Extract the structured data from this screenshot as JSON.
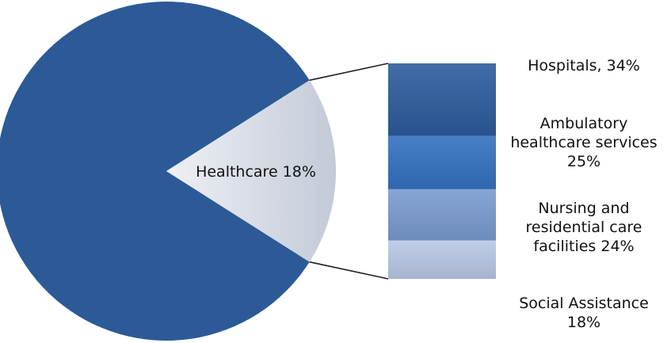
{
  "chart_data": {
    "type": "pie",
    "title": "",
    "pie": {
      "slices": [
        {
          "label": "",
          "value": 82,
          "color": "#2b5a97"
        },
        {
          "label": "Healthcare 18%",
          "value": 18,
          "color": "#d6dbe6",
          "exploded": true
        }
      ]
    },
    "breakdown": {
      "of": "Healthcare 18%",
      "segments": [
        {
          "label": [
            "Hospitals, 34%"
          ],
          "value": 34,
          "color": "#2c5c9d"
        },
        {
          "label": [
            "Ambulatory",
            "healthcare services",
            "25%"
          ],
          "value": 25,
          "color": "#3372c0"
        },
        {
          "label": [
            "Nursing and",
            "residential care",
            "facilities 24%"
          ],
          "value": 24,
          "color": "#7a9bd0"
        },
        {
          "label": [
            "Social Assistance",
            "18%"
          ],
          "value": 18,
          "color": "#b9c8e6"
        }
      ]
    }
  }
}
